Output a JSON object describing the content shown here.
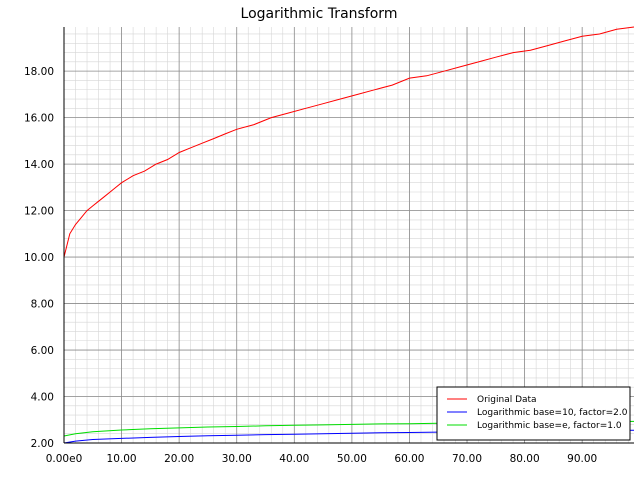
{
  "chart_data": {
    "type": "line",
    "title": "Logarithmic Transform",
    "xlabel": "",
    "ylabel": "",
    "xlim": [
      0,
      99
    ],
    "ylim": [
      2,
      19.9
    ],
    "grid": true,
    "legend_position": "bottom-right",
    "x_ticks": [
      {
        "value": 0,
        "label": "0.00e0"
      },
      {
        "value": 10,
        "label": "10.00"
      },
      {
        "value": 20,
        "label": "20.00"
      },
      {
        "value": 30,
        "label": "30.00"
      },
      {
        "value": 40,
        "label": "40.00"
      },
      {
        "value": 50,
        "label": "50.00"
      },
      {
        "value": 60,
        "label": "60.00"
      },
      {
        "value": 70,
        "label": "70.00"
      },
      {
        "value": 80,
        "label": "80.00"
      },
      {
        "value": 90,
        "label": "90.00"
      }
    ],
    "y_ticks": [
      {
        "value": 2,
        "label": "2.00"
      },
      {
        "value": 4,
        "label": "4.00"
      },
      {
        "value": 6,
        "label": "6.00"
      },
      {
        "value": 8,
        "label": "8.00"
      },
      {
        "value": 10,
        "label": "10.00"
      },
      {
        "value": 12,
        "label": "12.00"
      },
      {
        "value": 14,
        "label": "14.00"
      },
      {
        "value": 16,
        "label": "16.00"
      },
      {
        "value": 18,
        "label": "18.00"
      }
    ],
    "series": [
      {
        "name": "Original Data",
        "color": "#ff0000",
        "x": [
          0,
          1,
          2,
          3,
          4,
          5,
          6,
          7,
          8,
          9,
          10,
          12,
          14,
          16,
          18,
          20,
          22,
          24,
          26,
          28,
          30,
          33,
          36,
          39,
          42,
          45,
          48,
          51,
          54,
          57,
          60,
          63,
          66,
          69,
          72,
          75,
          78,
          81,
          84,
          87,
          90,
          93,
          96,
          99
        ],
        "values": [
          10.0,
          11.0,
          11.4,
          11.7,
          12.0,
          12.2,
          12.4,
          12.6,
          12.8,
          13.0,
          13.2,
          13.5,
          13.7,
          14.0,
          14.2,
          14.5,
          14.7,
          14.9,
          15.1,
          15.3,
          15.5,
          15.7,
          16.0,
          16.2,
          16.4,
          16.6,
          16.8,
          17.0,
          17.2,
          17.4,
          17.7,
          17.8,
          18.0,
          18.2,
          18.4,
          18.6,
          18.8,
          18.9,
          19.1,
          19.3,
          19.5,
          19.6,
          19.8,
          19.9
        ]
      },
      {
        "name": "Logarithmic base=10, factor=2.0",
        "color": "#0000ff",
        "x": [
          0,
          2,
          5,
          10,
          15,
          20,
          25,
          30,
          35,
          40,
          45,
          50,
          55,
          60,
          65,
          70,
          75,
          80,
          85,
          90,
          95,
          99
        ],
        "values": [
          2.0,
          2.08,
          2.15,
          2.2,
          2.24,
          2.28,
          2.31,
          2.33,
          2.36,
          2.38,
          2.4,
          2.42,
          2.44,
          2.45,
          2.47,
          2.48,
          2.49,
          2.51,
          2.52,
          2.53,
          2.54,
          2.55
        ]
      },
      {
        "name": "Logarithmic base=e, factor=1.0",
        "color": "#00dd00",
        "x": [
          0,
          2,
          5,
          10,
          15,
          20,
          25,
          30,
          35,
          40,
          45,
          50,
          55,
          60,
          65,
          70,
          75,
          80,
          85,
          90,
          95,
          99
        ],
        "values": [
          2.3,
          2.4,
          2.48,
          2.56,
          2.61,
          2.65,
          2.69,
          2.71,
          2.74,
          2.76,
          2.78,
          2.8,
          2.82,
          2.83,
          2.85,
          2.86,
          2.87,
          2.89,
          2.9,
          2.91,
          2.92,
          2.93
        ]
      }
    ]
  }
}
